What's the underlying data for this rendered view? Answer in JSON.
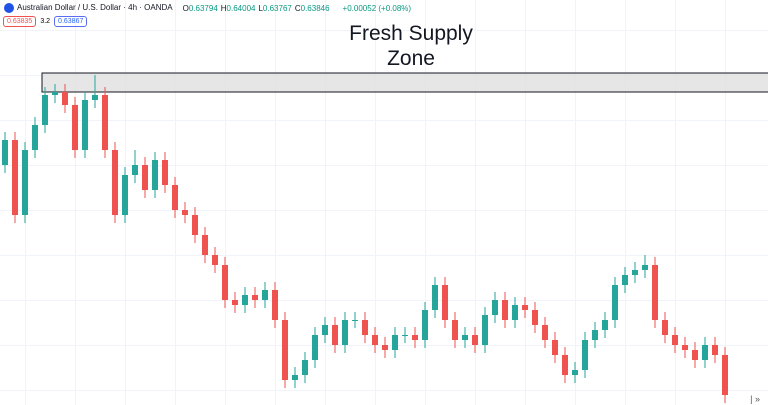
{
  "header": {
    "symbol": "Australian Dollar / U.S. Dollar · 4h · OANDA",
    "ohlc": [
      {
        "label": "O",
        "value": "0.63794"
      },
      {
        "label": "H",
        "value": "0.64004"
      },
      {
        "label": "L",
        "value": "0.63767"
      },
      {
        "label": "C",
        "value": "0.63846"
      }
    ],
    "change": "+0.00052 (+0.08%)",
    "sell": "0.63835",
    "spread": "3.2",
    "buy": "0.63867"
  },
  "chart_data": {
    "type": "candlestick",
    "ylim": [
      0.62,
      0.6605
    ],
    "up_color": "#26a69a",
    "down_color": "#ef5350",
    "open": [
      0.644,
      0.6465,
      0.639,
      0.6455,
      0.648,
      0.651,
      0.6513,
      0.65,
      0.6455,
      0.6505,
      0.651,
      0.6455,
      0.639,
      0.643,
      0.644,
      0.6415,
      0.6445,
      0.642,
      0.6395,
      0.639,
      0.637,
      0.635,
      0.634,
      0.6305,
      0.63,
      0.631,
      0.6305,
      0.6315,
      0.6285,
      0.6225,
      0.623,
      0.6245,
      0.627,
      0.628,
      0.626,
      0.6285,
      0.6285,
      0.627,
      0.626,
      0.6255,
      0.627,
      0.627,
      0.6265,
      0.6295,
      0.632,
      0.6285,
      0.6265,
      0.627,
      0.626,
      0.629,
      0.6305,
      0.6285,
      0.63,
      0.6295,
      0.628,
      0.6265,
      0.625,
      0.623,
      0.6235,
      0.6265,
      0.6275,
      0.6285,
      0.632,
      0.633,
      0.6335,
      0.634,
      0.6285,
      0.627,
      0.626,
      0.6255,
      0.6245,
      0.626,
      0.625
    ],
    "high": [
      0.6473,
      0.6473,
      0.6463,
      0.6488,
      0.6518,
      0.6521,
      0.6521,
      0.6508,
      0.6513,
      0.653,
      0.6518,
      0.6463,
      0.6438,
      0.6455,
      0.6448,
      0.6453,
      0.6453,
      0.6428,
      0.6403,
      0.6398,
      0.6378,
      0.6358,
      0.6348,
      0.6313,
      0.6318,
      0.6318,
      0.6323,
      0.6323,
      0.6293,
      0.6238,
      0.6253,
      0.6278,
      0.6288,
      0.6288,
      0.6293,
      0.6293,
      0.6293,
      0.6278,
      0.6268,
      0.6278,
      0.6278,
      0.6278,
      0.6303,
      0.6328,
      0.6328,
      0.6293,
      0.6278,
      0.6278,
      0.6298,
      0.6313,
      0.6313,
      0.6308,
      0.6308,
      0.6303,
      0.6288,
      0.6273,
      0.6258,
      0.6243,
      0.6273,
      0.6283,
      0.6293,
      0.6328,
      0.6338,
      0.6343,
      0.635,
      0.6348,
      0.6293,
      0.6278,
      0.6268,
      0.6263,
      0.6268,
      0.6268,
      0.6258
    ],
    "low": [
      0.6432,
      0.6382,
      0.6382,
      0.6447,
      0.6472,
      0.6502,
      0.6492,
      0.6447,
      0.6447,
      0.6497,
      0.6447,
      0.6382,
      0.6382,
      0.6422,
      0.6407,
      0.6407,
      0.6412,
      0.6387,
      0.6382,
      0.6362,
      0.6342,
      0.6332,
      0.6297,
      0.6292,
      0.6292,
      0.6297,
      0.6297,
      0.6277,
      0.6217,
      0.6217,
      0.6222,
      0.6237,
      0.6262,
      0.6252,
      0.6252,
      0.6277,
      0.6262,
      0.6252,
      0.6247,
      0.6247,
      0.6262,
      0.6257,
      0.6257,
      0.6287,
      0.6277,
      0.6257,
      0.6257,
      0.6252,
      0.6252,
      0.6282,
      0.6277,
      0.6277,
      0.6287,
      0.6272,
      0.6257,
      0.6242,
      0.6222,
      0.6222,
      0.6227,
      0.6257,
      0.6267,
      0.6277,
      0.6312,
      0.6322,
      0.6327,
      0.6277,
      0.6262,
      0.6252,
      0.6247,
      0.6237,
      0.6237,
      0.6242,
      0.6202
    ],
    "close": [
      0.6465,
      0.639,
      0.6455,
      0.648,
      0.651,
      0.6513,
      0.65,
      0.6455,
      0.6505,
      0.651,
      0.6455,
      0.639,
      0.643,
      0.644,
      0.6415,
      0.6445,
      0.642,
      0.6395,
      0.639,
      0.637,
      0.635,
      0.634,
      0.6305,
      0.63,
      0.631,
      0.6305,
      0.6315,
      0.6285,
      0.6225,
      0.623,
      0.6245,
      0.627,
      0.628,
      0.626,
      0.6285,
      0.6285,
      0.627,
      0.626,
      0.6255,
      0.627,
      0.627,
      0.6265,
      0.6295,
      0.632,
      0.6285,
      0.6265,
      0.627,
      0.626,
      0.629,
      0.6305,
      0.6285,
      0.63,
      0.6295,
      0.628,
      0.6265,
      0.625,
      0.623,
      0.6235,
      0.6265,
      0.6275,
      0.6285,
      0.632,
      0.633,
      0.6335,
      0.634,
      0.6285,
      0.627,
      0.626,
      0.6255,
      0.6245,
      0.626,
      0.625,
      0.621
    ],
    "zone": {
      "label": "Fresh Supply Zone",
      "top": 0.6532,
      "bottom": 0.6513,
      "start": 4,
      "color": "#e0e0e0"
    }
  }
}
